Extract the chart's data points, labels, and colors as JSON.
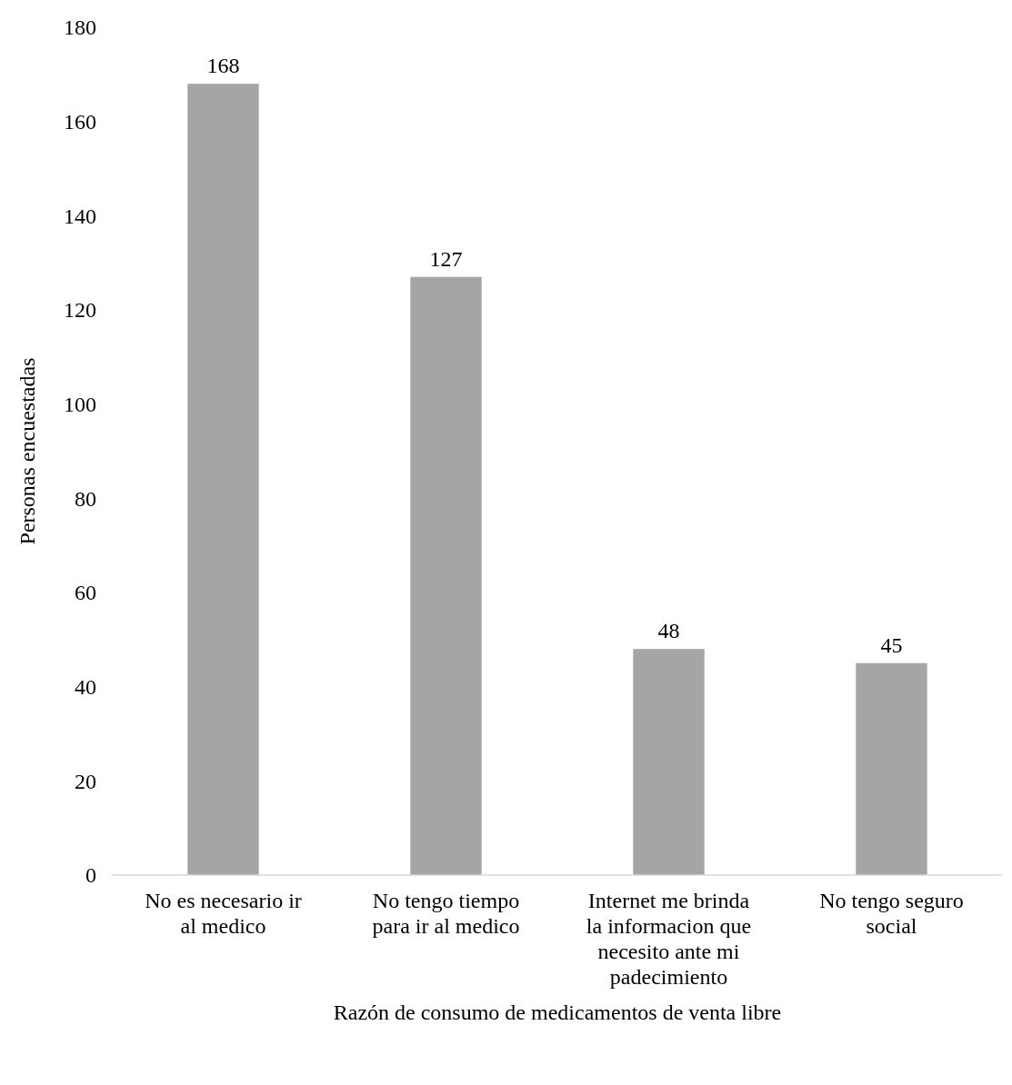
{
  "chart_data": {
    "type": "bar",
    "xlabel": "Razón de consumo de medicamentos de venta libre",
    "ylabel": "Personas encuestadas",
    "categories": [
      "No es necesario ir al medico",
      "No tengo tiempo para ir al medico",
      "Internet me brinda la informacion que necesito ante mi padecimiento",
      "No tengo seguro social"
    ],
    "values": [
      168,
      127,
      48,
      45
    ],
    "color": "#a5a5a5",
    "ylim": [
      0,
      180
    ],
    "yticks": [
      0,
      20,
      40,
      60,
      80,
      100,
      120,
      140,
      160,
      180
    ],
    "data_labels": true,
    "grid": false
  }
}
